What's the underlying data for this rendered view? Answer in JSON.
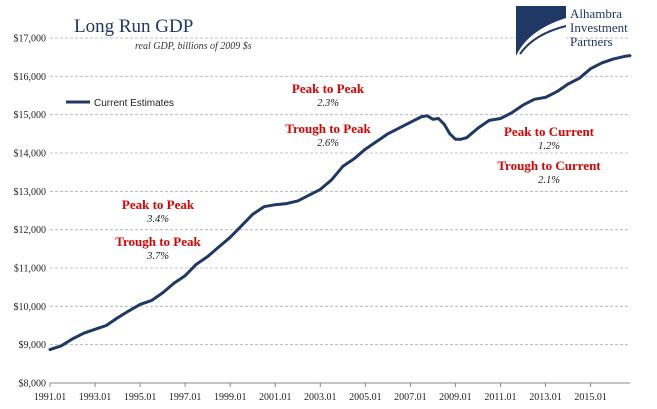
{
  "logo": {
    "lines": [
      "Alhambra",
      "Investment",
      "Partners"
    ],
    "color": "#1f3864"
  },
  "chart_data": {
    "type": "line",
    "title": "Long Run GDP",
    "subtitle": "real GDP, billions of 2009 $s",
    "xlabel": "",
    "ylabel": "",
    "ylim": [
      8000,
      17000
    ],
    "xlim": [
      1991.0,
      2016.75
    ],
    "grid": true,
    "legend_position": "top-left",
    "y_ticks": [
      8000,
      9000,
      10000,
      11000,
      12000,
      13000,
      14000,
      15000,
      16000,
      17000
    ],
    "y_tick_labels": [
      "$8,000",
      "$9,000",
      "$10,000",
      "$11,000",
      "$12,000",
      "$13,000",
      "$14,000",
      "$15,000",
      "$16,000",
      "$17,000"
    ],
    "x_ticks": [
      1991,
      1993,
      1995,
      1997,
      1999,
      2001,
      2003,
      2005,
      2007,
      2009,
      2011,
      2013,
      2015
    ],
    "x_tick_labels": [
      "1991.01",
      "1993.01",
      "1995.01",
      "1997.01",
      "1999.01",
      "2001.01",
      "2003.01",
      "2005.01",
      "2007.01",
      "2009.01",
      "2011.01",
      "2013.01",
      "2015.01"
    ],
    "series": [
      {
        "name": "Current Estimates",
        "color": "#1f3864",
        "x": [
          1991.0,
          1991.5,
          1992.0,
          1992.5,
          1993.0,
          1993.5,
          1994.0,
          1994.5,
          1995.0,
          1995.5,
          1996.0,
          1996.5,
          1997.0,
          1997.5,
          1998.0,
          1998.5,
          1999.0,
          1999.5,
          2000.0,
          2000.5,
          2001.0,
          2001.5,
          2002.0,
          2002.5,
          2003.0,
          2003.5,
          2004.0,
          2004.5,
          2005.0,
          2005.5,
          2006.0,
          2006.5,
          2007.0,
          2007.5,
          2007.75,
          2008.0,
          2008.25,
          2008.5,
          2008.75,
          2009.0,
          2009.25,
          2009.5,
          2010.0,
          2010.5,
          2011.0,
          2011.5,
          2012.0,
          2012.5,
          2013.0,
          2013.5,
          2014.0,
          2014.5,
          2015.0,
          2015.5,
          2016.0,
          2016.5,
          2016.75
        ],
        "values": [
          8870,
          8970,
          9150,
          9300,
          9400,
          9500,
          9700,
          9880,
          10050,
          10150,
          10350,
          10600,
          10800,
          11100,
          11300,
          11550,
          11800,
          12100,
          12400,
          12600,
          12650,
          12680,
          12750,
          12900,
          13050,
          13300,
          13650,
          13850,
          14100,
          14300,
          14500,
          14650,
          14800,
          14950,
          14970,
          14880,
          14900,
          14750,
          14500,
          14360,
          14360,
          14400,
          14650,
          14850,
          14900,
          15050,
          15250,
          15400,
          15450,
          15600,
          15800,
          15950,
          16200,
          16350,
          16450,
          16520,
          16540
        ]
      }
    ],
    "annotations": [
      {
        "label": "Peak to Peak",
        "value": "2.3%"
      },
      {
        "label": "Trough to Peak",
        "value": "2.6%"
      },
      {
        "label": "Peak to Peak",
        "value": "3.4%"
      },
      {
        "label": "Trough to Peak",
        "value": "3.7%"
      },
      {
        "label": "Peak to Current",
        "value": "1.2%"
      },
      {
        "label": "Trough to Current",
        "value": "2.1%"
      }
    ],
    "annotation_label_color": "#e00000"
  }
}
